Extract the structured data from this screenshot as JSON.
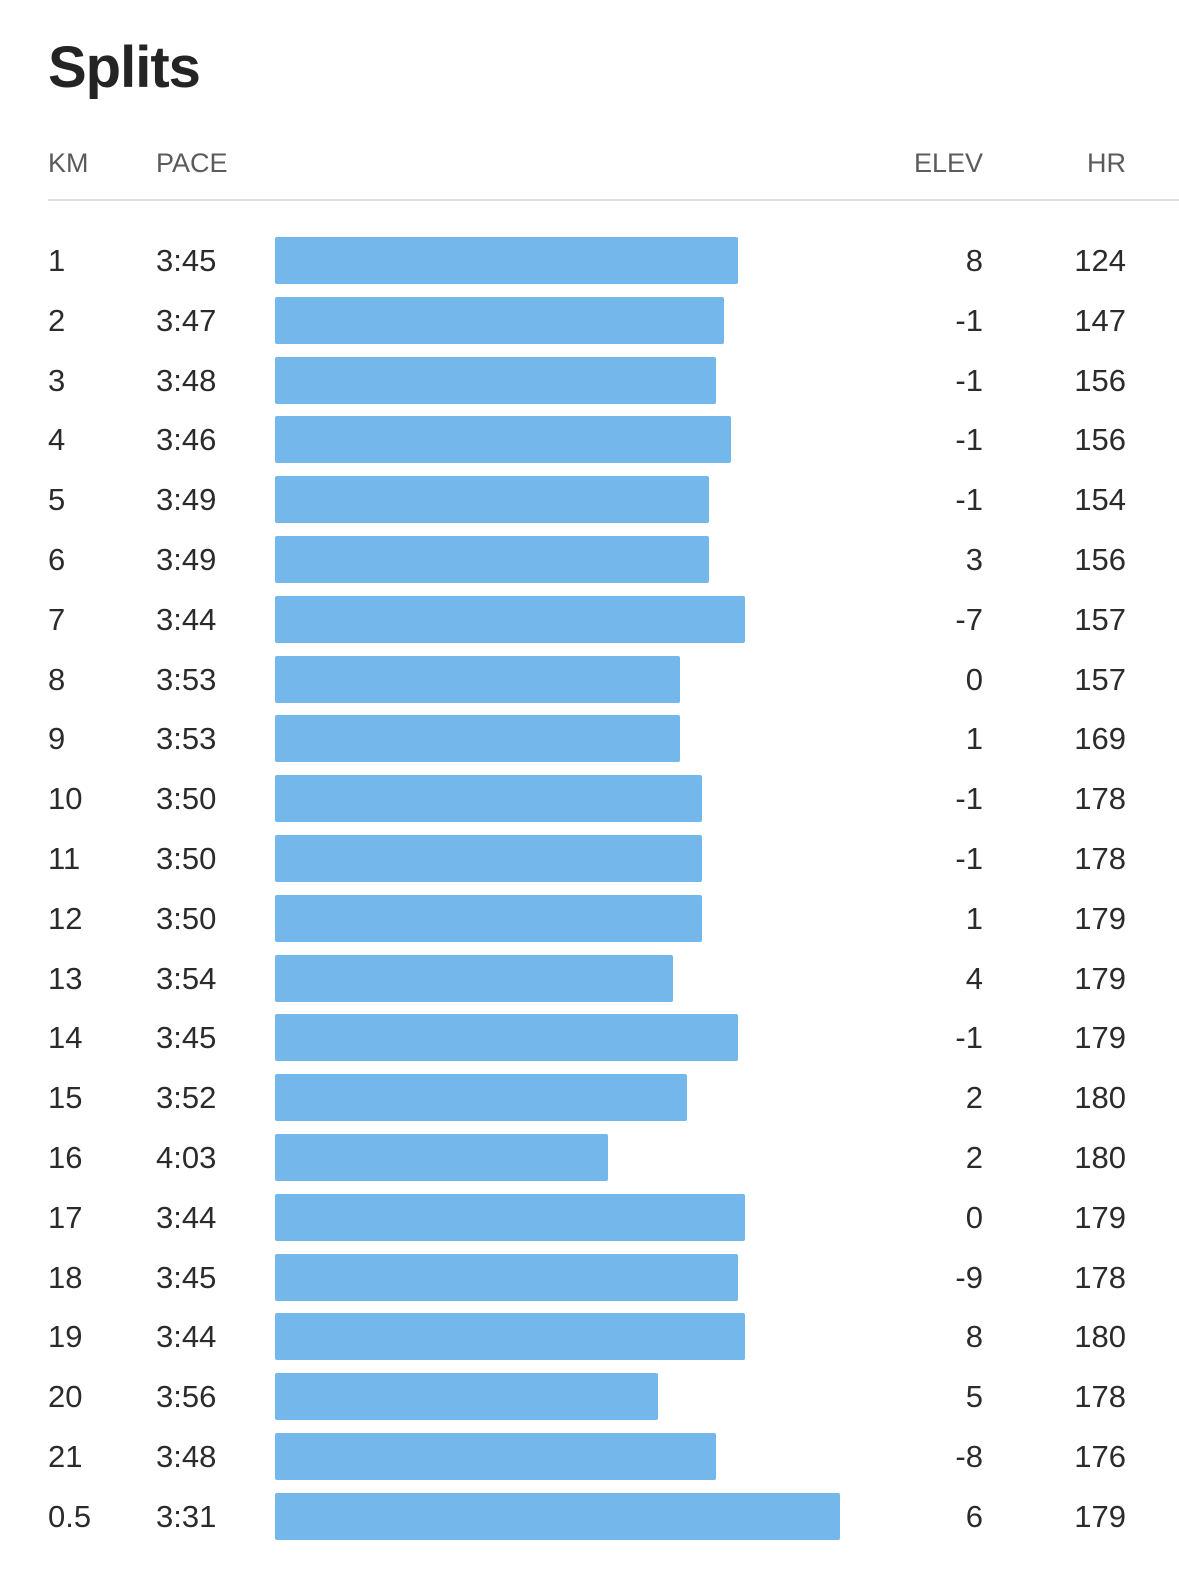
{
  "title": "Splits",
  "headers": {
    "km": "KM",
    "pace": "PACE",
    "elev": "ELEV",
    "hr": "HR"
  },
  "bar_color": "#74b8eb",
  "chart_data": {
    "type": "bar",
    "title": "Splits",
    "xlabel": "KM",
    "ylabel": "PACE",
    "categories": [
      "1",
      "2",
      "3",
      "4",
      "5",
      "6",
      "7",
      "8",
      "9",
      "10",
      "11",
      "12",
      "13",
      "14",
      "15",
      "16",
      "17",
      "18",
      "19",
      "20",
      "21",
      "0.5"
    ],
    "pace_seconds": [
      225,
      227,
      228,
      226,
      229,
      229,
      224,
      233,
      233,
      230,
      230,
      230,
      234,
      225,
      232,
      243,
      224,
      225,
      224,
      236,
      228,
      211
    ]
  },
  "splits": [
    {
      "km": "1",
      "pace": "3:45",
      "elev": "8",
      "hr": "124"
    },
    {
      "km": "2",
      "pace": "3:47",
      "elev": "-1",
      "hr": "147"
    },
    {
      "km": "3",
      "pace": "3:48",
      "elev": "-1",
      "hr": "156"
    },
    {
      "km": "4",
      "pace": "3:46",
      "elev": "-1",
      "hr": "156"
    },
    {
      "km": "5",
      "pace": "3:49",
      "elev": "-1",
      "hr": "154"
    },
    {
      "km": "6",
      "pace": "3:49",
      "elev": "3",
      "hr": "156"
    },
    {
      "km": "7",
      "pace": "3:44",
      "elev": "-7",
      "hr": "157"
    },
    {
      "km": "8",
      "pace": "3:53",
      "elev": "0",
      "hr": "157"
    },
    {
      "km": "9",
      "pace": "3:53",
      "elev": "1",
      "hr": "169"
    },
    {
      "km": "10",
      "pace": "3:50",
      "elev": "-1",
      "hr": "178"
    },
    {
      "km": "11",
      "pace": "3:50",
      "elev": "-1",
      "hr": "178"
    },
    {
      "km": "12",
      "pace": "3:50",
      "elev": "1",
      "hr": "179"
    },
    {
      "km": "13",
      "pace": "3:54",
      "elev": "4",
      "hr": "179"
    },
    {
      "km": "14",
      "pace": "3:45",
      "elev": "-1",
      "hr": "179"
    },
    {
      "km": "15",
      "pace": "3:52",
      "elev": "2",
      "hr": "180"
    },
    {
      "km": "16",
      "pace": "4:03",
      "elev": "2",
      "hr": "180"
    },
    {
      "km": "17",
      "pace": "3:44",
      "elev": "0",
      "hr": "179"
    },
    {
      "km": "18",
      "pace": "3:45",
      "elev": "-9",
      "hr": "178"
    },
    {
      "km": "19",
      "pace": "3:44",
      "elev": "8",
      "hr": "180"
    },
    {
      "km": "20",
      "pace": "3:56",
      "elev": "5",
      "hr": "178"
    },
    {
      "km": "21",
      "pace": "3:48",
      "elev": "-8",
      "hr": "176"
    },
    {
      "km": "0.5",
      "pace": "3:31",
      "elev": "6",
      "hr": "179"
    }
  ]
}
